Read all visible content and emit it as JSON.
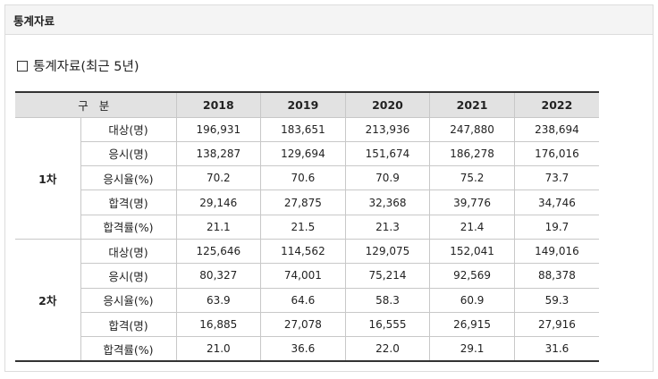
{
  "header": {
    "title": "통계자료"
  },
  "section": {
    "title": "통계자료(최근 5년)"
  },
  "table": {
    "division_label": "구 분",
    "years": [
      "2018",
      "2019",
      "2020",
      "2021",
      "2022"
    ],
    "groups": [
      {
        "label": "1차",
        "rows": [
          {
            "item": "대상(명)",
            "values": [
              "196,931",
              "183,651",
              "213,936",
              "247,880",
              "238,694"
            ]
          },
          {
            "item": "응시(명)",
            "values": [
              "138,287",
              "129,694",
              "151,674",
              "186,278",
              "176,016"
            ]
          },
          {
            "item": "응시율(%)",
            "values": [
              "70.2",
              "70.6",
              "70.9",
              "75.2",
              "73.7"
            ]
          },
          {
            "item": "합격(명)",
            "values": [
              "29,146",
              "27,875",
              "32,368",
              "39,776",
              "34,746"
            ]
          },
          {
            "item": "합격률(%)",
            "values": [
              "21.1",
              "21.5",
              "21.3",
              "21.4",
              "19.7"
            ]
          }
        ]
      },
      {
        "label": "2차",
        "rows": [
          {
            "item": "대상(명)",
            "values": [
              "125,646",
              "114,562",
              "129,075",
              "152,041",
              "149,016"
            ]
          },
          {
            "item": "응시(명)",
            "values": [
              "80,327",
              "74,001",
              "75,214",
              "92,569",
              "88,378"
            ]
          },
          {
            "item": "응시율(%)",
            "values": [
              "63.9",
              "64.6",
              "58.3",
              "60.9",
              "59.3"
            ]
          },
          {
            "item": "합격(명)",
            "values": [
              "16,885",
              "27,078",
              "16,555",
              "26,915",
              "27,916"
            ]
          },
          {
            "item": "합격률(%)",
            "values": [
              "21.0",
              "36.6",
              "22.0",
              "29.1",
              "31.6"
            ]
          }
        ]
      }
    ]
  }
}
